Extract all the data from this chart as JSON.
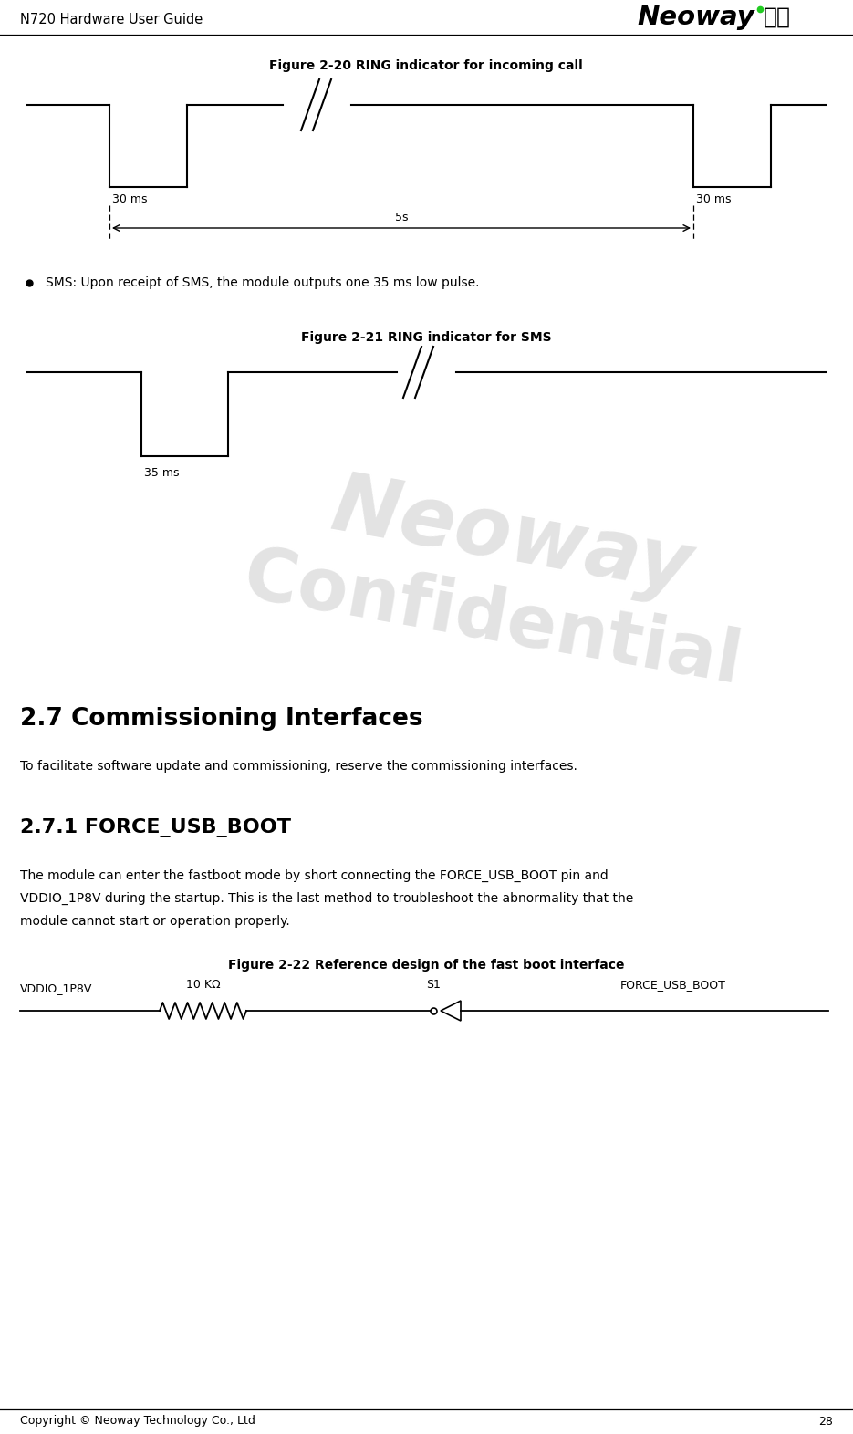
{
  "header_text": "N720 Hardware User Guide",
  "footer_text": "Copyright © Neoway Technology Co., Ltd",
  "footer_page": "28",
  "fig1_title": "Figure 2-20 RING indicator for incoming call",
  "fig2_title": "Figure 2-21 RING indicator for SMS",
  "fig3_title": "Figure 2-22 Reference design of the fast boot interface",
  "section_title": "2.7 Commissioning Interfaces",
  "subsection_title": "2.7.1 FORCE_USB_BOOT",
  "para1": "SMS: Upon receipt of SMS, the module outputs one 35 ms low pulse.",
  "para2": "To facilitate software update and commissioning, reserve the commissioning interfaces.",
  "para3_line1": "The module can enter the fastboot mode by short connecting the FORCE_USB_BOOT pin and",
  "para3_line2": "VDDIO_1P8V during the startup. This is the last method to troubleshoot the abnormality that the",
  "para3_line3": "module cannot start or operation properly.",
  "label_30ms_left": "30 ms",
  "label_30ms_right": "30 ms",
  "label_5s": "5s",
  "label_35ms": "35 ms",
  "label_vddio": "VDDIO_1P8V",
  "label_10k": "10 KΩ",
  "label_s1": "S1",
  "label_force": "FORCE_USB_BOOT",
  "bg_color": "#ffffff",
  "line_color": "#000000",
  "text_color": "#000000",
  "watermark_text1": "Neoway",
  "watermark_text2": "Confidential"
}
